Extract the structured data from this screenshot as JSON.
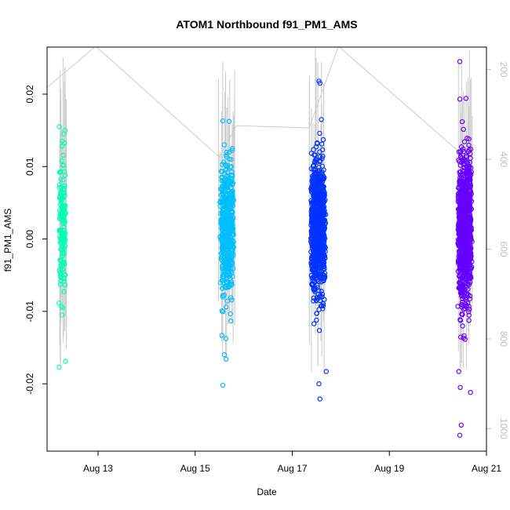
{
  "chart_data": {
    "type": "scatter",
    "title": "ATOM1 Northbound f91_PM1_AMS",
    "xlabel": "Date",
    "ylabel": "f91_PM1_AMS",
    "x_tick_labels": [
      "Aug 13",
      "Aug 15",
      "Aug 17",
      "Aug 19",
      "Aug 21"
    ],
    "x_tick_days": [
      13,
      15,
      17,
      19,
      21
    ],
    "xlim_days": [
      11.95,
      21.0
    ],
    "y_ticks": [
      "-0.02",
      "-0.01",
      "0.00",
      "0.01",
      "0.02"
    ],
    "y_tick_values": [
      -0.02,
      -0.01,
      0.0,
      0.01,
      0.02
    ],
    "ylim": [
      -0.0293,
      0.0265
    ],
    "right_axis_ticks": [
      "200",
      "400",
      "600",
      "800",
      "1000"
    ],
    "right_axis_values": [
      200,
      400,
      600,
      800,
      1000
    ],
    "right_axis_lim": [
      1050,
      150
    ],
    "right_axis_color": "#bfbfbf",
    "line_color": "#cccccc",
    "grid": false,
    "series": [
      {
        "color": "#00ffb2",
        "x_range_days": [
          12.18,
          12.35
        ],
        "y_mean": 0.0015,
        "y_sd": 0.0052,
        "count": 150,
        "extremes": [
          {
            "x": 12.2,
            "y": 0.0155
          },
          {
            "x": 12.32,
            "y": 0.015
          },
          {
            "x": 12.2,
            "y": -0.0177
          },
          {
            "x": 12.33,
            "y": -0.0169
          },
          {
            "x": 12.25,
            "y": 0.0108
          }
        ]
      },
      {
        "color": "#00bfff",
        "x_range_days": [
          15.48,
          15.83
        ],
        "y_mean": 0.0015,
        "y_sd": 0.0045,
        "count": 500,
        "extremes": [
          {
            "x": 15.57,
            "y": 0.0163
          },
          {
            "x": 15.6,
            "y": 0.013
          },
          {
            "x": 15.57,
            "y": -0.0202
          },
          {
            "x": 15.6,
            "y": -0.016
          },
          {
            "x": 15.55,
            "y": -0.0133
          }
        ]
      },
      {
        "color": "#0033ff",
        "x_range_days": [
          17.35,
          17.72
        ],
        "y_mean": 0.0015,
        "y_sd": 0.0045,
        "count": 900,
        "extremes": [
          {
            "x": 17.55,
            "y": 0.0218
          },
          {
            "x": 17.57,
            "y": 0.0215
          },
          {
            "x": 17.57,
            "y": -0.0221
          },
          {
            "x": 17.55,
            "y": -0.02
          },
          {
            "x": 17.7,
            "y": -0.0183
          },
          {
            "x": 17.6,
            "y": 0.0165
          }
        ]
      },
      {
        "color": "#6600ff",
        "x_range_days": [
          20.38,
          20.73
        ],
        "y_mean": 0.0015,
        "y_sd": 0.005,
        "count": 1000,
        "extremes": [
          {
            "x": 20.45,
            "y": 0.0245
          },
          {
            "x": 20.45,
            "y": -0.0271
          },
          {
            "x": 20.48,
            "y": -0.0257
          },
          {
            "x": 20.67,
            "y": -0.0212
          },
          {
            "x": 20.46,
            "y": -0.0205
          },
          {
            "x": 20.43,
            "y": -0.0183
          },
          {
            "x": 20.5,
            "y": 0.0162
          }
        ]
      }
    ],
    "secondary_line": [
      {
        "x": 11.95,
        "y": 240
      },
      {
        "x": 12.95,
        "y": 148
      },
      {
        "x": 15.5,
        "y": 395
      },
      {
        "x": 15.85,
        "y": 325
      },
      {
        "x": 17.35,
        "y": 330
      },
      {
        "x": 17.95,
        "y": 148
      },
      {
        "x": 20.4,
        "y": 380
      }
    ]
  }
}
